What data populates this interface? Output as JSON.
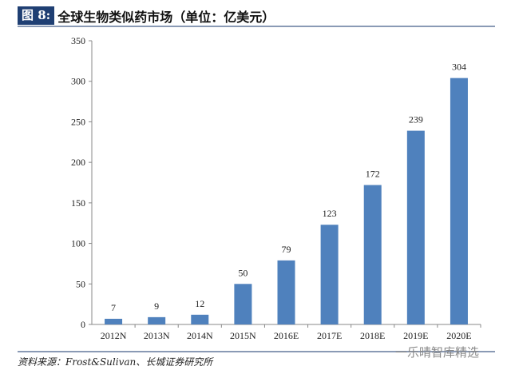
{
  "header": {
    "figure_label": "图 8:",
    "title": "全球生物类似药市场（单位：亿美元）"
  },
  "footer": {
    "source": "资料来源：Frost&Sulivan、长城证券研究所",
    "watermark": "一乐晴智库精选"
  },
  "chart_data": {
    "type": "bar",
    "categories": [
      "2012N",
      "2013N",
      "2014N",
      "2015N",
      "2016E",
      "2017E",
      "2018E",
      "2019E",
      "2020E"
    ],
    "values": [
      7,
      9,
      12,
      50,
      79,
      123,
      172,
      239,
      304
    ],
    "ylim": [
      0,
      350
    ],
    "yticks": [
      0,
      50,
      100,
      150,
      200,
      250,
      300,
      350
    ],
    "grid": false,
    "bar_color": "#4f81bd",
    "data_labels": true
  }
}
